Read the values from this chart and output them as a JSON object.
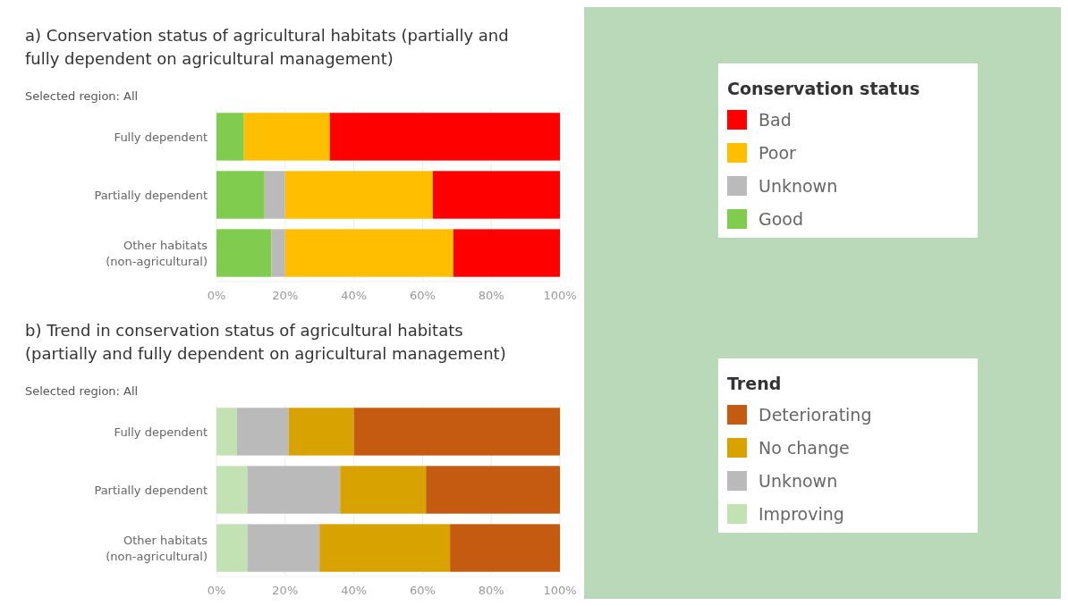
{
  "chart_data": [
    {
      "type": "bar",
      "orientation": "horizontal",
      "stacked": true,
      "title": "a) Conservation status of agricultural habitats (partially and fully dependent on agricultural management)",
      "subtitle": "Selected region: All",
      "legend_title": "Conservation status",
      "legend": "right",
      "grid": "x",
      "categories": [
        "Fully dependent",
        "Partially dependent",
        "Other habitats (non-agricultural)"
      ],
      "xlim": [
        0,
        100
      ],
      "xticks": [
        {
          "value": 0,
          "label": "0%"
        },
        {
          "value": 20,
          "label": "20%"
        },
        {
          "value": 40,
          "label": "40%"
        },
        {
          "value": 60,
          "label": "60%"
        },
        {
          "value": 80,
          "label": "80%"
        },
        {
          "value": 100,
          "label": "100%"
        }
      ],
      "series": [
        {
          "name": "Good",
          "color": "#7fcc4e",
          "values": [
            8,
            14,
            16
          ]
        },
        {
          "name": "Unknown",
          "color": "#bababa",
          "values": [
            0,
            6,
            4
          ]
        },
        {
          "name": "Poor",
          "color": "#ffbe00",
          "values": [
            25,
            43,
            49
          ]
        },
        {
          "name": "Bad",
          "color": "#ff0000",
          "values": [
            67,
            37,
            31
          ]
        }
      ]
    },
    {
      "type": "bar",
      "orientation": "horizontal",
      "stacked": true,
      "title": "b) Trend in conservation status of agricultural habitats (partially and fully dependent on agricultural management)",
      "subtitle": "Selected region: All",
      "legend_title": "Trend",
      "legend": "right",
      "grid": "x",
      "categories": [
        "Fully dependent",
        "Partially dependent",
        "Other habitats (non-agricultural)"
      ],
      "xlim": [
        0,
        100
      ],
      "xticks": [
        {
          "value": 0,
          "label": "0%"
        },
        {
          "value": 20,
          "label": "20%"
        },
        {
          "value": 40,
          "label": "40%"
        },
        {
          "value": 60,
          "label": "60%"
        },
        {
          "value": 80,
          "label": "80%"
        },
        {
          "value": 100,
          "label": "100%"
        }
      ],
      "series": [
        {
          "name": "Improving",
          "color": "#c3e2b4",
          "values": [
            6,
            9,
            9
          ]
        },
        {
          "name": "Unknown",
          "color": "#bababa",
          "values": [
            15,
            27,
            21
          ]
        },
        {
          "name": "No change",
          "color": "#d8a200",
          "values": [
            19,
            25,
            38
          ]
        },
        {
          "name": "Deteriorating",
          "color": "#c55a11",
          "values": [
            60,
            39,
            32
          ]
        }
      ]
    }
  ]
}
